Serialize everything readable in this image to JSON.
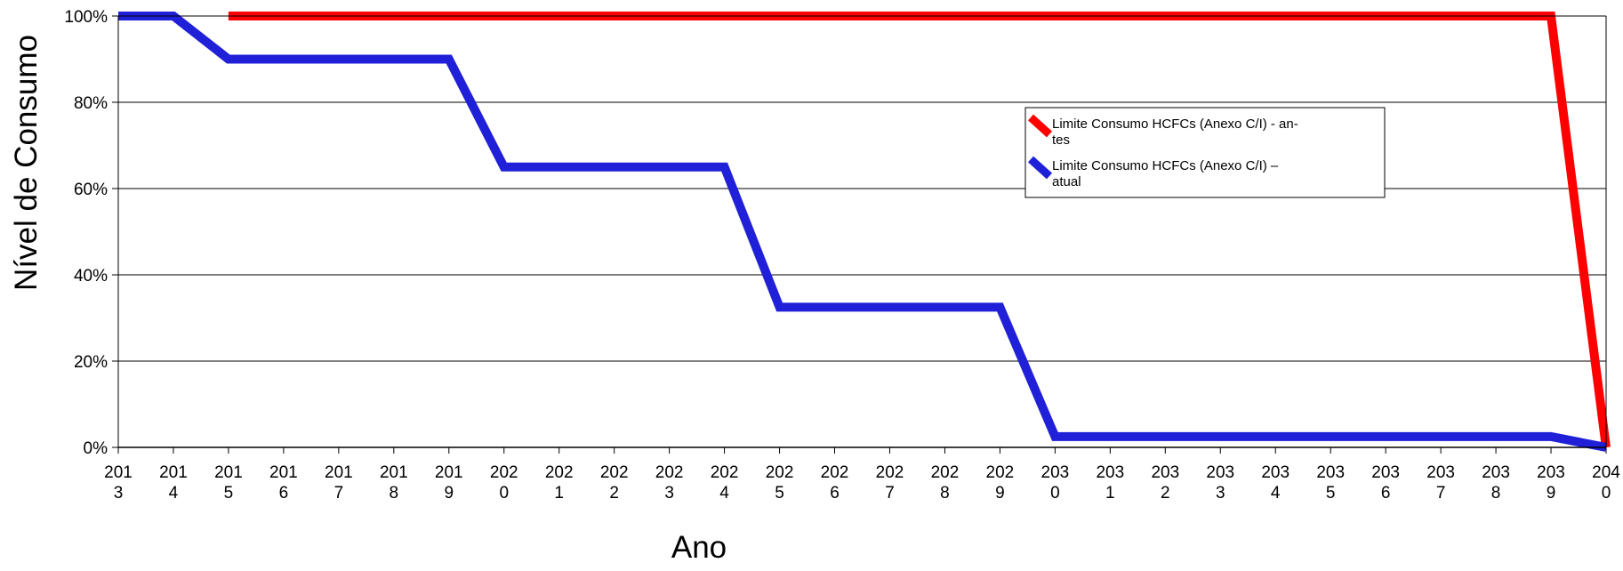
{
  "chart_data": {
    "type": "line",
    "xlabel": "Ano",
    "ylabel": "Nível de Consumo",
    "x": [
      2013,
      2014,
      2015,
      2016,
      2017,
      2018,
      2019,
      2020,
      2021,
      2022,
      2023,
      2024,
      2025,
      2026,
      2027,
      2028,
      2029,
      2030,
      2031,
      2032,
      2033,
      2034,
      2035,
      2036,
      2037,
      2038,
      2039,
      2040
    ],
    "x_tick_labels": [
      [
        "201",
        "3"
      ],
      [
        "201",
        "4"
      ],
      [
        "201",
        "5"
      ],
      [
        "201",
        "6"
      ],
      [
        "201",
        "7"
      ],
      [
        "201",
        "8"
      ],
      [
        "201",
        "9"
      ],
      [
        "202",
        "0"
      ],
      [
        "202",
        "1"
      ],
      [
        "202",
        "2"
      ],
      [
        "202",
        "3"
      ],
      [
        "202",
        "4"
      ],
      [
        "202",
        "5"
      ],
      [
        "202",
        "6"
      ],
      [
        "202",
        "7"
      ],
      [
        "202",
        "8"
      ],
      [
        "202",
        "9"
      ],
      [
        "203",
        "0"
      ],
      [
        "203",
        "1"
      ],
      [
        "203",
        "2"
      ],
      [
        "203",
        "3"
      ],
      [
        "203",
        "4"
      ],
      [
        "203",
        "5"
      ],
      [
        "203",
        "6"
      ],
      [
        "203",
        "7"
      ],
      [
        "203",
        "8"
      ],
      [
        "203",
        "9"
      ],
      [
        "204",
        "0"
      ]
    ],
    "y_ticks": [
      0,
      20,
      40,
      60,
      80,
      100
    ],
    "y_tick_labels": [
      "0%",
      "20%",
      "40%",
      "60%",
      "80%",
      "100%"
    ],
    "ylim": [
      0,
      100
    ],
    "grid": "horizontal",
    "legend_position": "upper-right",
    "series": [
      {
        "name_lines": [
          "Limite Consumo HCFCs (Anexo C/I) -  an-",
          "tes"
        ],
        "color": "#ff0000",
        "x": [
          2015,
          2016,
          2017,
          2018,
          2019,
          2020,
          2021,
          2022,
          2023,
          2024,
          2025,
          2026,
          2027,
          2028,
          2029,
          2030,
          2031,
          2032,
          2033,
          2034,
          2035,
          2036,
          2037,
          2038,
          2039,
          2040
        ],
        "values": [
          100,
          100,
          100,
          100,
          100,
          100,
          100,
          100,
          100,
          100,
          100,
          100,
          100,
          100,
          100,
          100,
          100,
          100,
          100,
          100,
          100,
          100,
          100,
          100,
          100,
          0
        ]
      },
      {
        "name_lines": [
          "Limite Consumo HCFCs (Anexo C/I) –",
          "atual"
        ],
        "color": "#2020d8",
        "x": [
          2013,
          2014,
          2015,
          2016,
          2017,
          2018,
          2019,
          2020,
          2021,
          2022,
          2023,
          2024,
          2025,
          2026,
          2027,
          2028,
          2029,
          2030,
          2031,
          2032,
          2033,
          2034,
          2035,
          2036,
          2037,
          2038,
          2039,
          2040
        ],
        "values": [
          100,
          100,
          90,
          90,
          90,
          90,
          90,
          65,
          65,
          65,
          65,
          65,
          32.5,
          32.5,
          32.5,
          32.5,
          32.5,
          2.5,
          2.5,
          2.5,
          2.5,
          2.5,
          2.5,
          2.5,
          2.5,
          2.5,
          2.5,
          0
        ]
      }
    ]
  }
}
